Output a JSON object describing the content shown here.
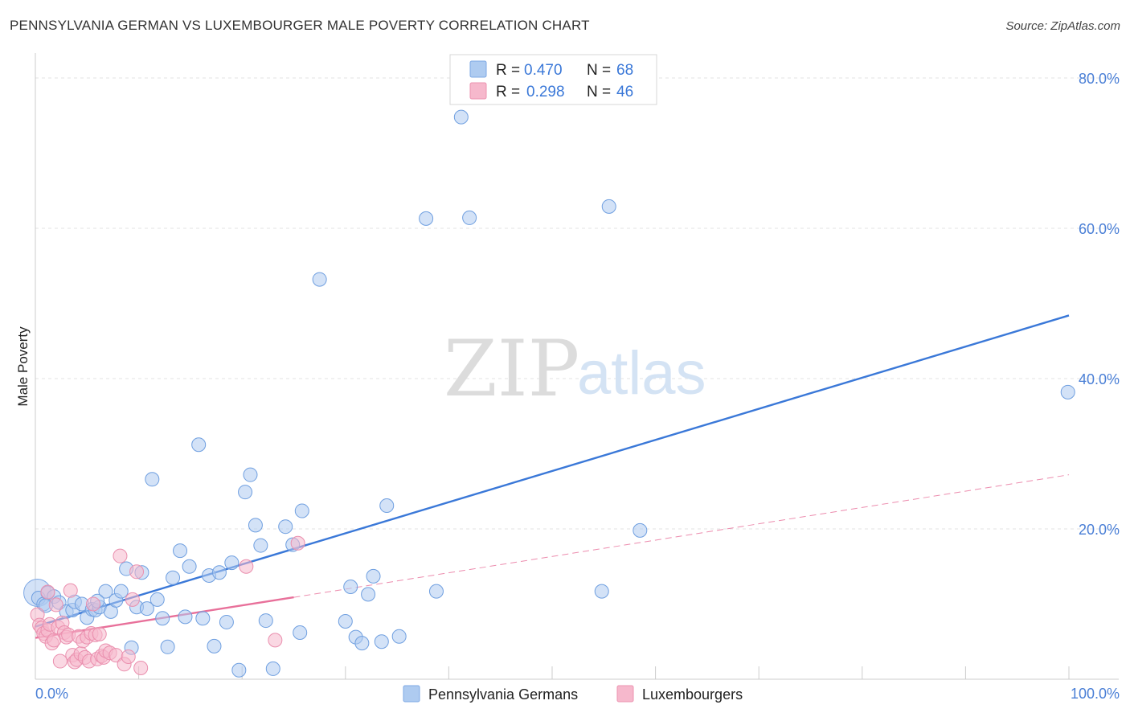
{
  "header": {
    "title": "PENNSYLVANIA GERMAN VS LUXEMBOURGER MALE POVERTY CORRELATION CHART",
    "source": "Source: ZipAtlas.com"
  },
  "watermark": {
    "zip": "ZIP",
    "atlas": "atlas"
  },
  "colors": {
    "blue": "#3a78d8",
    "blue_fill": "#aecbf0",
    "pink": "#e8709a",
    "pink_fill": "#f6b8cc",
    "grid": "#e3e3e3"
  },
  "legend": {
    "rows": [
      {
        "r_label": "R =",
        "r_value": "0.470",
        "n_label": "N =",
        "n_value": "68",
        "color": "blue"
      },
      {
        "r_label": "R =",
        "r_value": "0.298",
        "n_label": "N =",
        "n_value": "46",
        "color": "pink"
      }
    ]
  },
  "bottom_legend": {
    "items": [
      {
        "label": "Pennsylvania Germans",
        "color": "blue"
      },
      {
        "label": "Luxembourgers",
        "color": "pink"
      }
    ]
  },
  "chart_data": {
    "type": "scatter",
    "title": "PENNSYLVANIA GERMAN VS LUXEMBOURGER MALE POVERTY CORRELATION CHART",
    "xlabel": "",
    "ylabel": "Male Poverty",
    "xlim": [
      0,
      100
    ],
    "ylim": [
      0,
      80
    ],
    "x_tick_labels": [
      "0.0%",
      "100.0%"
    ],
    "y_ticks": [
      20,
      40,
      60,
      80
    ],
    "y_tick_labels": [
      "20.0%",
      "40.0%",
      "60.0%",
      "80.0%"
    ],
    "grid": true,
    "series": [
      {
        "name": "Pennsylvania Germans",
        "color": "blue",
        "r": 0.47,
        "n": 68,
        "trend": {
          "x": [
            0,
            100
          ],
          "y": [
            7.0,
            48.4
          ],
          "style": "solid"
        },
        "points": [
          [
            0.3,
            10.8
          ],
          [
            0.8,
            10.0
          ],
          [
            1.2,
            11.5
          ],
          [
            1.8,
            11.0
          ],
          [
            2.3,
            10.2
          ],
          [
            3.0,
            9.0
          ],
          [
            3.6,
            9.2
          ],
          [
            3.8,
            10.3
          ],
          [
            4.5,
            10.0
          ],
          [
            5.0,
            8.2
          ],
          [
            5.5,
            9.3
          ],
          [
            5.8,
            9.2
          ],
          [
            6.2,
            9.6
          ],
          [
            6.8,
            11.7
          ],
          [
            7.3,
            9.0
          ],
          [
            7.8,
            10.5
          ],
          [
            8.3,
            11.7
          ],
          [
            8.8,
            14.7
          ],
          [
            9.3,
            4.2
          ],
          [
            9.8,
            9.6
          ],
          [
            10.3,
            14.2
          ],
          [
            10.8,
            9.4
          ],
          [
            11.3,
            26.6
          ],
          [
            11.8,
            10.6
          ],
          [
            12.3,
            8.1
          ],
          [
            12.8,
            4.3
          ],
          [
            13.3,
            13.5
          ],
          [
            14.0,
            17.1
          ],
          [
            14.5,
            8.3
          ],
          [
            14.9,
            15.0
          ],
          [
            15.8,
            31.2
          ],
          [
            16.2,
            8.1
          ],
          [
            16.8,
            13.8
          ],
          [
            17.3,
            4.4
          ],
          [
            17.8,
            14.2
          ],
          [
            18.5,
            7.6
          ],
          [
            19.0,
            15.5
          ],
          [
            19.7,
            1.2
          ],
          [
            20.3,
            24.9
          ],
          [
            20.8,
            27.2
          ],
          [
            21.3,
            20.5
          ],
          [
            21.8,
            17.8
          ],
          [
            22.3,
            7.8
          ],
          [
            23.0,
            1.4
          ],
          [
            24.2,
            20.3
          ],
          [
            24.9,
            17.9
          ],
          [
            25.8,
            22.4
          ],
          [
            25.6,
            6.2
          ],
          [
            27.5,
            53.2
          ],
          [
            30.0,
            7.7
          ],
          [
            30.5,
            12.3
          ],
          [
            31.0,
            5.6
          ],
          [
            31.6,
            4.8
          ],
          [
            32.2,
            11.3
          ],
          [
            32.7,
            13.7
          ],
          [
            33.5,
            5.0
          ],
          [
            34.0,
            23.1
          ],
          [
            35.2,
            5.7
          ],
          [
            37.8,
            61.3
          ],
          [
            38.8,
            11.7
          ],
          [
            41.2,
            74.8
          ],
          [
            42.0,
            61.4
          ],
          [
            54.8,
            11.7
          ],
          [
            55.5,
            62.9
          ],
          [
            58.5,
            19.8
          ],
          [
            99.9,
            38.2
          ],
          [
            1.0,
            9.8
          ],
          [
            6.0,
            10.4
          ]
        ]
      },
      {
        "name": "Luxembourgers",
        "color": "pink",
        "r": 0.298,
        "n": 46,
        "trend": {
          "x": [
            0,
            25
          ],
          "y": [
            5.5,
            10.9
          ],
          "style": "solid",
          "extended": {
            "x": [
              25,
              100
            ],
            "y": [
              10.9,
              27.2
            ],
            "style": "dashed"
          }
        },
        "points": [
          [
            0.2,
            8.6
          ],
          [
            0.4,
            7.2
          ],
          [
            0.6,
            6.8
          ],
          [
            0.8,
            6.1
          ],
          [
            1.0,
            5.7
          ],
          [
            1.2,
            6.5
          ],
          [
            1.4,
            7.3
          ],
          [
            1.6,
            4.8
          ],
          [
            1.8,
            5.2
          ],
          [
            2.0,
            9.9
          ],
          [
            2.2,
            6.9
          ],
          [
            2.4,
            2.4
          ],
          [
            2.6,
            7.5
          ],
          [
            2.8,
            6.2
          ],
          [
            3.0,
            5.6
          ],
          [
            3.2,
            5.9
          ],
          [
            3.4,
            11.8
          ],
          [
            3.6,
            3.2
          ],
          [
            3.8,
            2.3
          ],
          [
            4.0,
            2.6
          ],
          [
            4.2,
            5.7
          ],
          [
            4.4,
            3.4
          ],
          [
            4.6,
            5.1
          ],
          [
            4.8,
            2.9
          ],
          [
            5.0,
            5.6
          ],
          [
            5.2,
            2.4
          ],
          [
            5.4,
            6.1
          ],
          [
            5.6,
            10.0
          ],
          [
            5.8,
            5.9
          ],
          [
            6.0,
            2.7
          ],
          [
            6.2,
            6.0
          ],
          [
            6.4,
            3.1
          ],
          [
            6.6,
            2.9
          ],
          [
            6.8,
            3.8
          ],
          [
            7.2,
            3.5
          ],
          [
            7.8,
            3.2
          ],
          [
            8.2,
            16.4
          ],
          [
            8.6,
            2.0
          ],
          [
            9.0,
            3.0
          ],
          [
            9.4,
            10.6
          ],
          [
            9.8,
            14.3
          ],
          [
            10.2,
            1.5
          ],
          [
            20.4,
            15.0
          ],
          [
            23.2,
            5.2
          ],
          [
            25.4,
            18.1
          ],
          [
            1.2,
            11.6
          ]
        ]
      }
    ]
  }
}
